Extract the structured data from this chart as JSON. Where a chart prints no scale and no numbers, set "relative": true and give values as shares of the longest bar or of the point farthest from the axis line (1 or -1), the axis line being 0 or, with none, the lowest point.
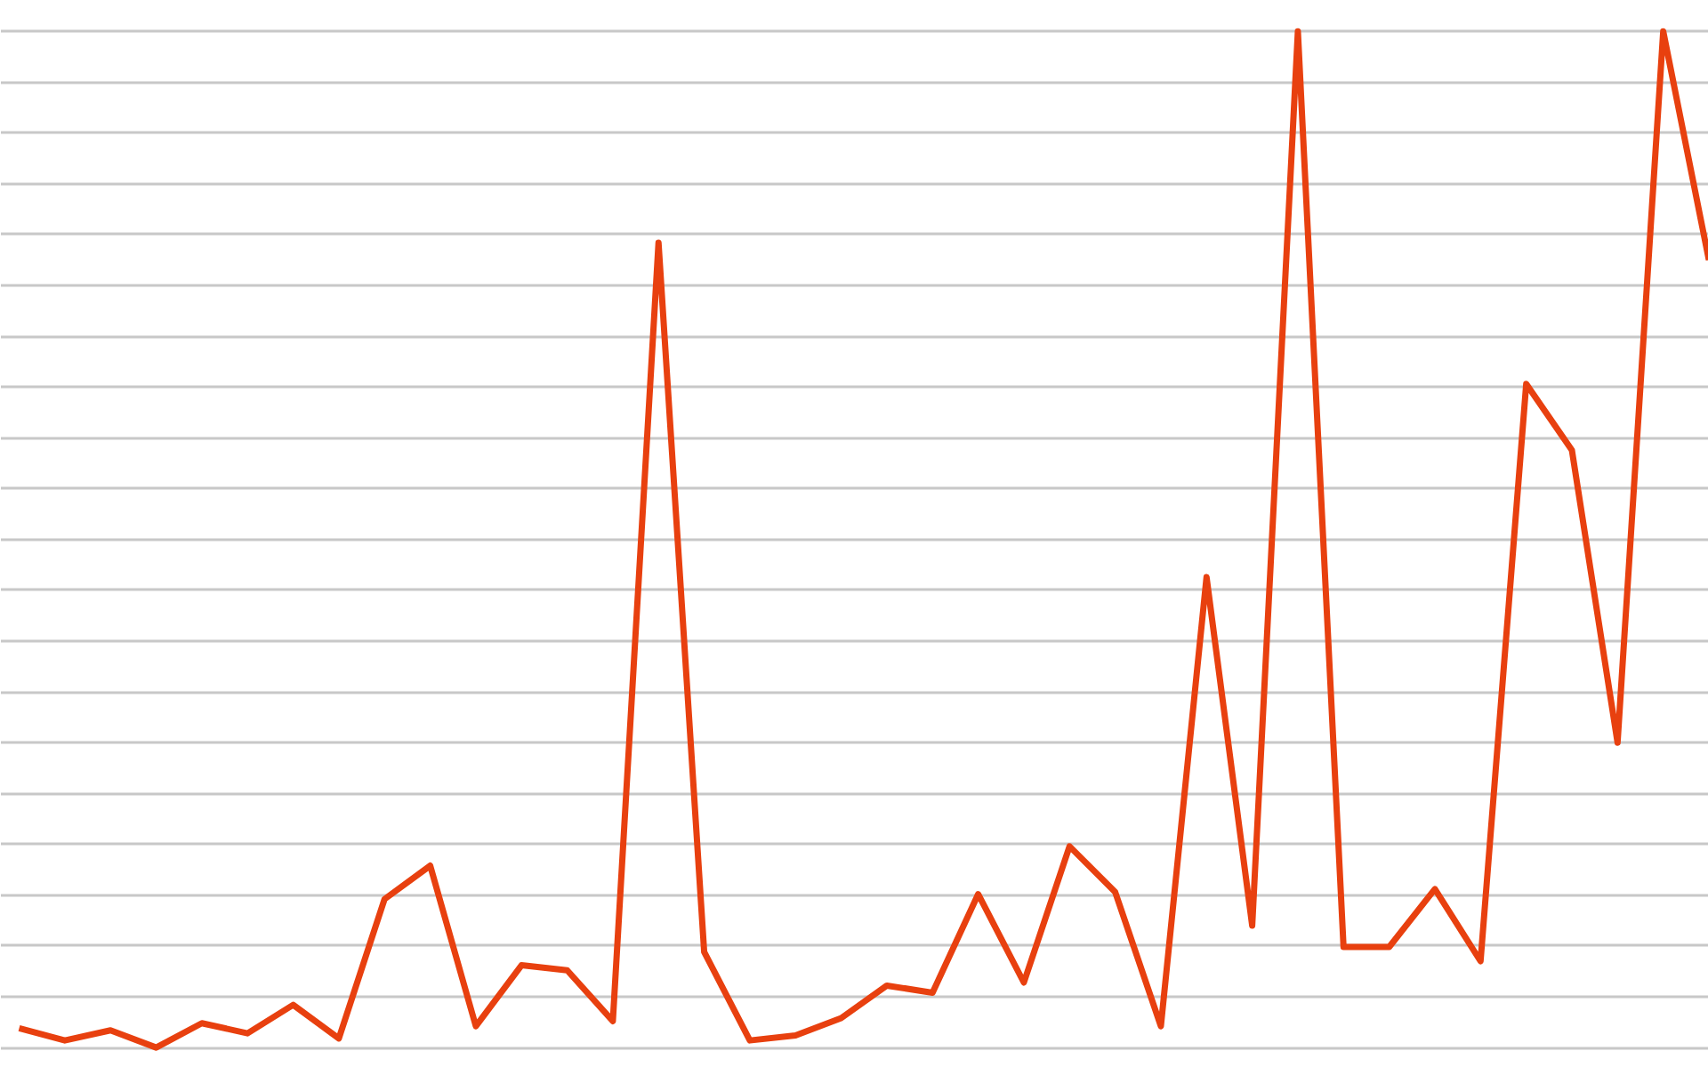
{
  "chart_data": {
    "type": "line",
    "relative": true,
    "grid": "y",
    "line_style": "solid",
    "marker": "none",
    "categories": [
      null,
      null,
      null,
      null,
      null,
      null,
      null,
      null,
      null,
      null,
      null,
      null,
      null,
      null,
      null,
      null,
      null,
      null,
      null,
      null,
      null,
      null,
      null,
      null,
      null,
      null,
      null,
      null,
      null,
      null,
      null,
      null,
      null,
      null,
      null,
      null,
      null,
      null
    ],
    "series": [
      {
        "color": "#e8400f",
        "values": [
          0.019,
          0.007,
          0.017,
          0,
          0.024,
          0.014,
          0.042,
          0.009,
          0.146,
          0.179,
          0.021,
          0.081,
          0.076,
          0.026,
          0.792,
          0.094,
          0.007,
          0.012,
          0.029,
          0.061,
          0.054,
          0.151,
          0.064,
          0.198,
          0.153,
          0.021,
          0.463,
          0.12,
          1,
          0.099,
          0.099,
          0.156,
          0.085,
          0.653,
          0.588,
          0.3,
          1,
          0.775
        ]
      }
    ]
  }
}
